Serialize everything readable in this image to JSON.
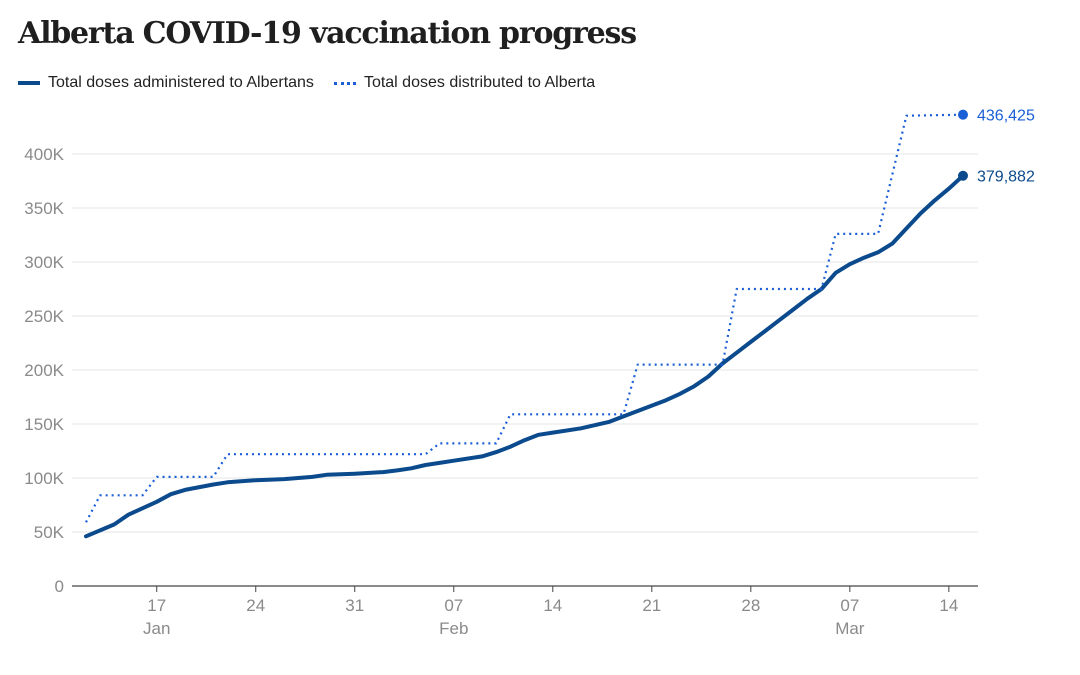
{
  "chart_data": {
    "type": "line",
    "title": "Alberta COVID-19 vaccination progress",
    "colors": {
      "administered": "#0b4a8c",
      "distributed": "#1a5fd6",
      "grid": "#e6e6e6",
      "axis": "#444444"
    },
    "legend_position": "top-left",
    "grid": true,
    "ylim": [
      0,
      450000
    ],
    "yticks": [
      {
        "value": 0,
        "label": "0"
      },
      {
        "value": 50000,
        "label": "50K"
      },
      {
        "value": 100000,
        "label": "100K"
      },
      {
        "value": 150000,
        "label": "150K"
      },
      {
        "value": 200000,
        "label": "200K"
      },
      {
        "value": 250000,
        "label": "250K"
      },
      {
        "value": 300000,
        "label": "300K"
      },
      {
        "value": 350000,
        "label": "350K"
      },
      {
        "value": 400000,
        "label": "400K"
      }
    ],
    "xlim": [
      "2021-01-11",
      "2021-03-16"
    ],
    "xticks": [
      {
        "date": "2021-01-17",
        "label": "17",
        "month": "Jan"
      },
      {
        "date": "2021-01-24",
        "label": "24",
        "month": ""
      },
      {
        "date": "2021-01-31",
        "label": "31",
        "month": ""
      },
      {
        "date": "2021-02-07",
        "label": "07",
        "month": "Feb"
      },
      {
        "date": "2021-02-14",
        "label": "14",
        "month": ""
      },
      {
        "date": "2021-02-21",
        "label": "21",
        "month": ""
      },
      {
        "date": "2021-02-28",
        "label": "28",
        "month": ""
      },
      {
        "date": "2021-03-07",
        "label": "07",
        "month": "Mar"
      },
      {
        "date": "2021-03-14",
        "label": "14",
        "month": ""
      }
    ],
    "series": [
      {
        "name": "Total doses administered to Albertans",
        "style": "solid",
        "end_label": "379,882",
        "points": [
          [
            "2021-01-12",
            46000
          ],
          [
            "2021-01-14",
            57000
          ],
          [
            "2021-01-15",
            66000
          ],
          [
            "2021-01-17",
            78000
          ],
          [
            "2021-01-18",
            85000
          ],
          [
            "2021-01-19",
            89000
          ],
          [
            "2021-01-21",
            94000
          ],
          [
            "2021-01-22",
            96000
          ],
          [
            "2021-01-24",
            98000
          ],
          [
            "2021-01-26",
            99000
          ],
          [
            "2021-01-28",
            101000
          ],
          [
            "2021-01-29",
            103000
          ],
          [
            "2021-01-31",
            104000
          ],
          [
            "2021-02-02",
            105500
          ],
          [
            "2021-02-03",
            107000
          ],
          [
            "2021-02-04",
            109000
          ],
          [
            "2021-02-05",
            112000
          ],
          [
            "2021-02-06",
            114000
          ],
          [
            "2021-02-07",
            116000
          ],
          [
            "2021-02-09",
            120000
          ],
          [
            "2021-02-10",
            124000
          ],
          [
            "2021-02-11",
            129000
          ],
          [
            "2021-02-12",
            135000
          ],
          [
            "2021-02-13",
            140000
          ],
          [
            "2021-02-14",
            142000
          ],
          [
            "2021-02-16",
            146000
          ],
          [
            "2021-02-17",
            149000
          ],
          [
            "2021-02-18",
            152000
          ],
          [
            "2021-02-19",
            157000
          ],
          [
            "2021-02-20",
            162000
          ],
          [
            "2021-02-21",
            167000
          ],
          [
            "2021-02-22",
            172000
          ],
          [
            "2021-02-23",
            178000
          ],
          [
            "2021-02-24",
            185000
          ],
          [
            "2021-02-25",
            194000
          ],
          [
            "2021-02-26",
            206000
          ],
          [
            "2021-02-27",
            216000
          ],
          [
            "2021-02-28",
            226000
          ],
          [
            "2021-03-01",
            236000
          ],
          [
            "2021-03-02",
            246000
          ],
          [
            "2021-03-03",
            256000
          ],
          [
            "2021-03-04",
            266000
          ],
          [
            "2021-03-05",
            275000
          ],
          [
            "2021-03-06",
            290000
          ],
          [
            "2021-03-07",
            298000
          ],
          [
            "2021-03-08",
            304000
          ],
          [
            "2021-03-09",
            309000
          ],
          [
            "2021-03-10",
            317000
          ],
          [
            "2021-03-11",
            331000
          ],
          [
            "2021-03-12",
            345000
          ],
          [
            "2021-03-13",
            357000
          ],
          [
            "2021-03-14",
            368000
          ],
          [
            "2021-03-15",
            379882
          ]
        ]
      },
      {
        "name": "Total doses distributed to Alberta",
        "style": "dotted",
        "end_label": "436,425",
        "points": [
          [
            "2021-01-12",
            59000
          ],
          [
            "2021-01-13",
            84000
          ],
          [
            "2021-01-16",
            84000
          ],
          [
            "2021-01-17",
            101000
          ],
          [
            "2021-01-21",
            101000
          ],
          [
            "2021-01-22",
            122000
          ],
          [
            "2021-02-05",
            122000
          ],
          [
            "2021-02-06",
            132000
          ],
          [
            "2021-02-10",
            132000
          ],
          [
            "2021-02-11",
            159000
          ],
          [
            "2021-02-19",
            159000
          ],
          [
            "2021-02-20",
            205000
          ],
          [
            "2021-02-26",
            205000
          ],
          [
            "2021-02-27",
            275000
          ],
          [
            "2021-03-05",
            275000
          ],
          [
            "2021-03-06",
            326000
          ],
          [
            "2021-03-09",
            326000
          ],
          [
            "2021-03-11",
            435500
          ],
          [
            "2021-03-15",
            436425
          ]
        ]
      }
    ]
  }
}
